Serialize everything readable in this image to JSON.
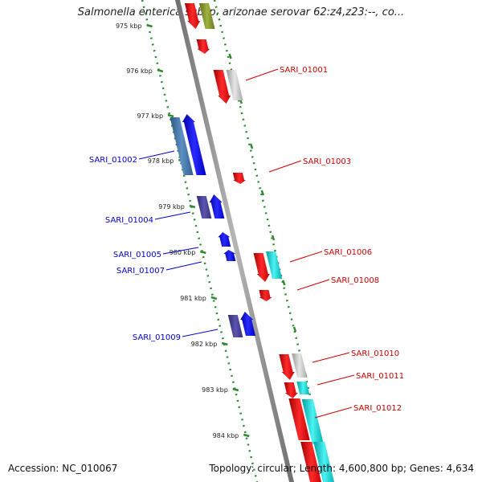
{
  "title": "Salmonella enterica subsp. arizonae serovar 62:z4,z23:--, co...",
  "footer": {
    "accession": "Accession: NC_010067",
    "stats": "Topology: circular; Length: 4,600,800 bp; Genes: 4,634"
  },
  "colors": {
    "backbone": "#8a8a8a",
    "tick_green": "#2e8b2e",
    "forward_label": "#cc0000",
    "reverse_label": "#0000cc",
    "red": "#ee0000",
    "blue": "#0000ee",
    "steel_blue": "#3d6fa3",
    "dark_slate": "#453f8f",
    "cyan": "#00cccc",
    "gray": "#bbbbbb",
    "olive": "#7d8f2b"
  },
  "ticks": [
    "975 kbp",
    "976 kbp",
    "977 kbp",
    "978 kbp",
    "979 kbp",
    "980 kbp",
    "981 kbp",
    "982 kbp",
    "983 kbp",
    "984 kbp"
  ],
  "forward_labels": [
    "SARI_01001",
    "SARI_01003",
    "SARI_01006",
    "SARI_01008",
    "SARI_01010",
    "SARI_01011",
    "SARI_01012"
  ],
  "reverse_labels": [
    "SARI_01002",
    "SARI_01004",
    "SARI_01005",
    "SARI_01007",
    "SARI_01009"
  ]
}
